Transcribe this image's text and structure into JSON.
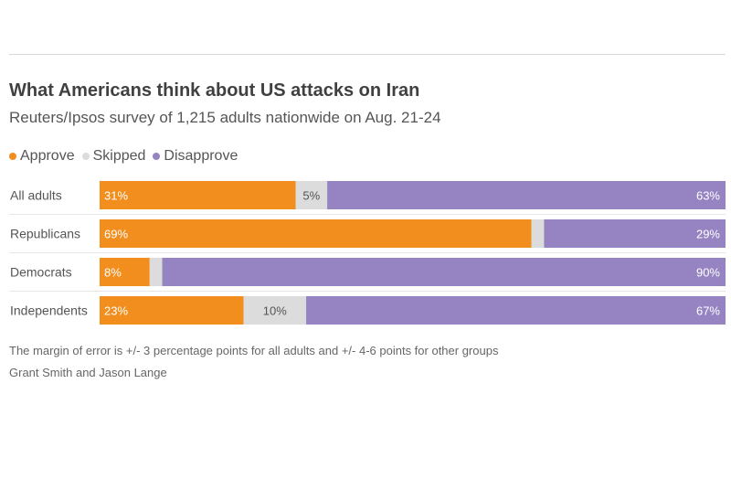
{
  "header": {
    "title": "What Americans think about US attacks on Iran",
    "subtitle": "Reuters/Ipsos survey of 1,215 adults nationwide on Aug. 21-24"
  },
  "legend": [
    {
      "label": "Approve",
      "color": "#f28e1e"
    },
    {
      "label": "Skipped",
      "color": "#dcdcdc"
    },
    {
      "label": "Disapprove",
      "color": "#9584c1"
    }
  ],
  "chart_data": {
    "type": "bar",
    "orientation": "horizontal",
    "stacked": true,
    "categories": [
      "All adults",
      "Republicans",
      "Democrats",
      "Independents"
    ],
    "series": [
      {
        "name": "Approve",
        "values": [
          31,
          69,
          8,
          23
        ],
        "labels": [
          "31%",
          "69%",
          "8%",
          "23%"
        ],
        "color": "#f28e1e"
      },
      {
        "name": "Skipped",
        "values": [
          5,
          2,
          2,
          10
        ],
        "labels": [
          "5%",
          "",
          "",
          "10%"
        ],
        "color": "#dcdcdc"
      },
      {
        "name": "Disapprove",
        "values": [
          63,
          29,
          90,
          67
        ],
        "labels": [
          "63%",
          "29%",
          "90%",
          "67%"
        ],
        "color": "#9584c1"
      }
    ],
    "title": "What Americans think about US attacks on Iran",
    "subtitle": "Reuters/Ipsos survey of 1,215 adults nationwide on Aug. 21-24",
    "xlabel": "",
    "ylabel": "",
    "xlim": [
      0,
      100
    ],
    "grid": false,
    "legend_position": "top-left"
  },
  "footer": {
    "note": "The margin of error is +/- 3 percentage points for all adults and +/- 4-6 points for other groups",
    "byline": "Grant Smith and Jason Lange"
  }
}
